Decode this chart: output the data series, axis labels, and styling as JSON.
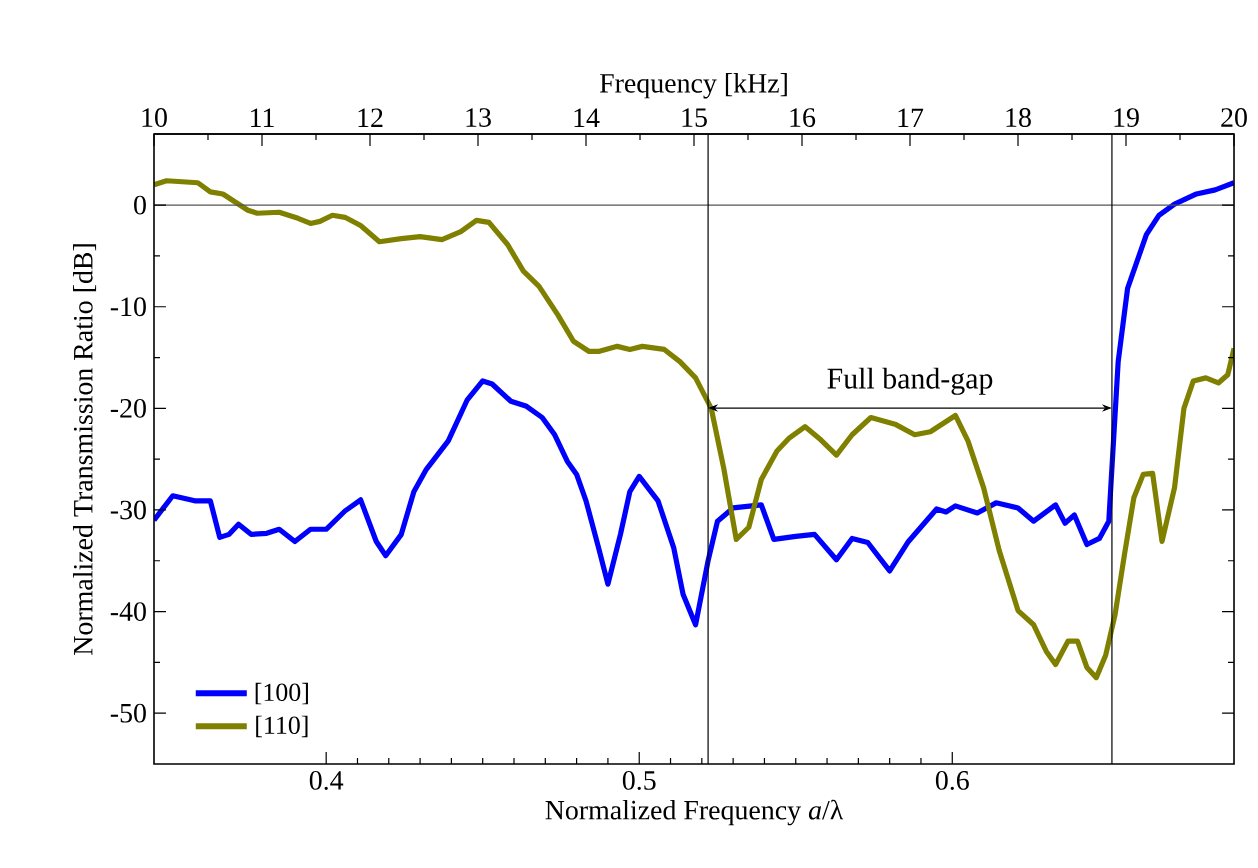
{
  "chart_data": {
    "type": "line",
    "xlabel": "Normalized Frequency *a*/λ",
    "ylabel": "Normalized Transmission Ratio [dB]",
    "x2label": "Frequency [kHz]",
    "xlim": [
      0.345,
      0.69
    ],
    "xticks": [
      0.4,
      0.5,
      0.6
    ],
    "x2lim": [
      10,
      20
    ],
    "x2ticks": [
      10,
      11,
      12,
      13,
      14,
      15,
      16,
      17,
      18,
      19,
      20
    ],
    "ylim": [
      -55,
      7
    ],
    "yticks": [
      -50,
      -40,
      -30,
      -20,
      -10,
      0
    ],
    "grid": false,
    "legend": "bottom left",
    "marker": "none",
    "line_style": "solid",
    "ref_lines": [
      {
        "axis": "y",
        "value": 0,
        "color": "#555555"
      },
      {
        "axis": "x",
        "value": 0.522,
        "color": "#000000"
      },
      {
        "axis": "x",
        "value": 0.651,
        "color": "#000000"
      }
    ],
    "annotations": [
      "Full band-gap"
    ],
    "series": [
      {
        "name": "[100]",
        "color": "#0000ff",
        "x": [
          0.345,
          0.351,
          0.358,
          0.363,
          0.366,
          0.369,
          0.372,
          0.376,
          0.381,
          0.385,
          0.39,
          0.395,
          0.4,
          0.406,
          0.411,
          0.416,
          0.419,
          0.424,
          0.428,
          0.432,
          0.439,
          0.445,
          0.45,
          0.453,
          0.459,
          0.464,
          0.469,
          0.473,
          0.477,
          0.48,
          0.483,
          0.487,
          0.49,
          0.494,
          0.497,
          0.5,
          0.506,
          0.511,
          0.514,
          0.518,
          0.522,
          0.525,
          0.53,
          0.539,
          0.543,
          0.55,
          0.556,
          0.563,
          0.568,
          0.573,
          0.58,
          0.586,
          0.595,
          0.598,
          0.601,
          0.608,
          0.614,
          0.621,
          0.626,
          0.633,
          0.636,
          0.639,
          0.643,
          0.647,
          0.65,
          0.653,
          0.656,
          0.662,
          0.666,
          0.671,
          0.678,
          0.684,
          0.69
        ],
        "values": [
          -31,
          -28.6,
          -29.1,
          -29.1,
          -32.7,
          -32.4,
          -31.4,
          -32.4,
          -32.3,
          -31.9,
          -33.1,
          -31.9,
          -31.9,
          -30.1,
          -29.0,
          -33.1,
          -34.5,
          -32.4,
          -28.2,
          -26.0,
          -23.2,
          -19.2,
          -17.3,
          -17.6,
          -19.3,
          -19.8,
          -20.9,
          -22.6,
          -25.2,
          -26.5,
          -29.1,
          -33.7,
          -37.3,
          -32.4,
          -28.2,
          -26.7,
          -29.1,
          -33.7,
          -38.3,
          -41.3,
          -35.0,
          -31.1,
          -29.8,
          -29.5,
          -32.9,
          -32.6,
          -32.4,
          -34.9,
          -32.8,
          -33.2,
          -36.0,
          -33.1,
          -29.9,
          -30.2,
          -29.6,
          -30.3,
          -29.3,
          -29.8,
          -31.1,
          -29.5,
          -31.3,
          -30.5,
          -33.4,
          -32.8,
          -31.1,
          -15.4,
          -8.2,
          -2.9,
          -1.0,
          0.1,
          1.1,
          1.5,
          2.2
        ]
      },
      {
        "name": "[110]",
        "color": "#808000",
        "x": [
          0.345,
          0.349,
          0.359,
          0.363,
          0.367,
          0.375,
          0.378,
          0.385,
          0.391,
          0.395,
          0.398,
          0.402,
          0.406,
          0.411,
          0.417,
          0.424,
          0.43,
          0.437,
          0.443,
          0.448,
          0.452,
          0.458,
          0.463,
          0.468,
          0.474,
          0.479,
          0.484,
          0.487,
          0.493,
          0.497,
          0.501,
          0.508,
          0.513,
          0.518,
          0.523,
          0.527,
          0.531,
          0.535,
          0.539,
          0.544,
          0.548,
          0.553,
          0.558,
          0.563,
          0.568,
          0.574,
          0.582,
          0.588,
          0.593,
          0.601,
          0.605,
          0.61,
          0.615,
          0.621,
          0.626,
          0.63,
          0.633,
          0.637,
          0.64,
          0.643,
          0.646,
          0.649,
          0.652,
          0.655,
          0.658,
          0.661,
          0.664,
          0.667,
          0.671,
          0.674,
          0.677,
          0.681,
          0.685,
          0.688,
          0.69
        ],
        "values": [
          2.0,
          2.4,
          2.2,
          1.3,
          1.1,
          -0.5,
          -0.8,
          -0.7,
          -1.3,
          -1.8,
          -1.6,
          -1.0,
          -1.2,
          -2.0,
          -3.6,
          -3.3,
          -3.1,
          -3.4,
          -2.6,
          -1.5,
          -1.7,
          -3.9,
          -6.5,
          -8.0,
          -10.8,
          -13.4,
          -14.4,
          -14.4,
          -13.9,
          -14.2,
          -13.9,
          -14.2,
          -15.4,
          -17.0,
          -20.0,
          -25.9,
          -32.9,
          -31.7,
          -27.0,
          -24.2,
          -22.9,
          -21.8,
          -23.1,
          -24.6,
          -22.6,
          -20.9,
          -21.6,
          -22.6,
          -22.3,
          -20.7,
          -23.2,
          -27.8,
          -34.0,
          -39.9,
          -41.3,
          -43.9,
          -45.2,
          -42.9,
          -42.9,
          -45.5,
          -46.5,
          -44.3,
          -40.3,
          -34.4,
          -28.8,
          -26.5,
          -26.4,
          -33.1,
          -27.8,
          -20.0,
          -17.3,
          -17.0,
          -17.5,
          -16.7,
          -14.1
        ]
      }
    ]
  }
}
